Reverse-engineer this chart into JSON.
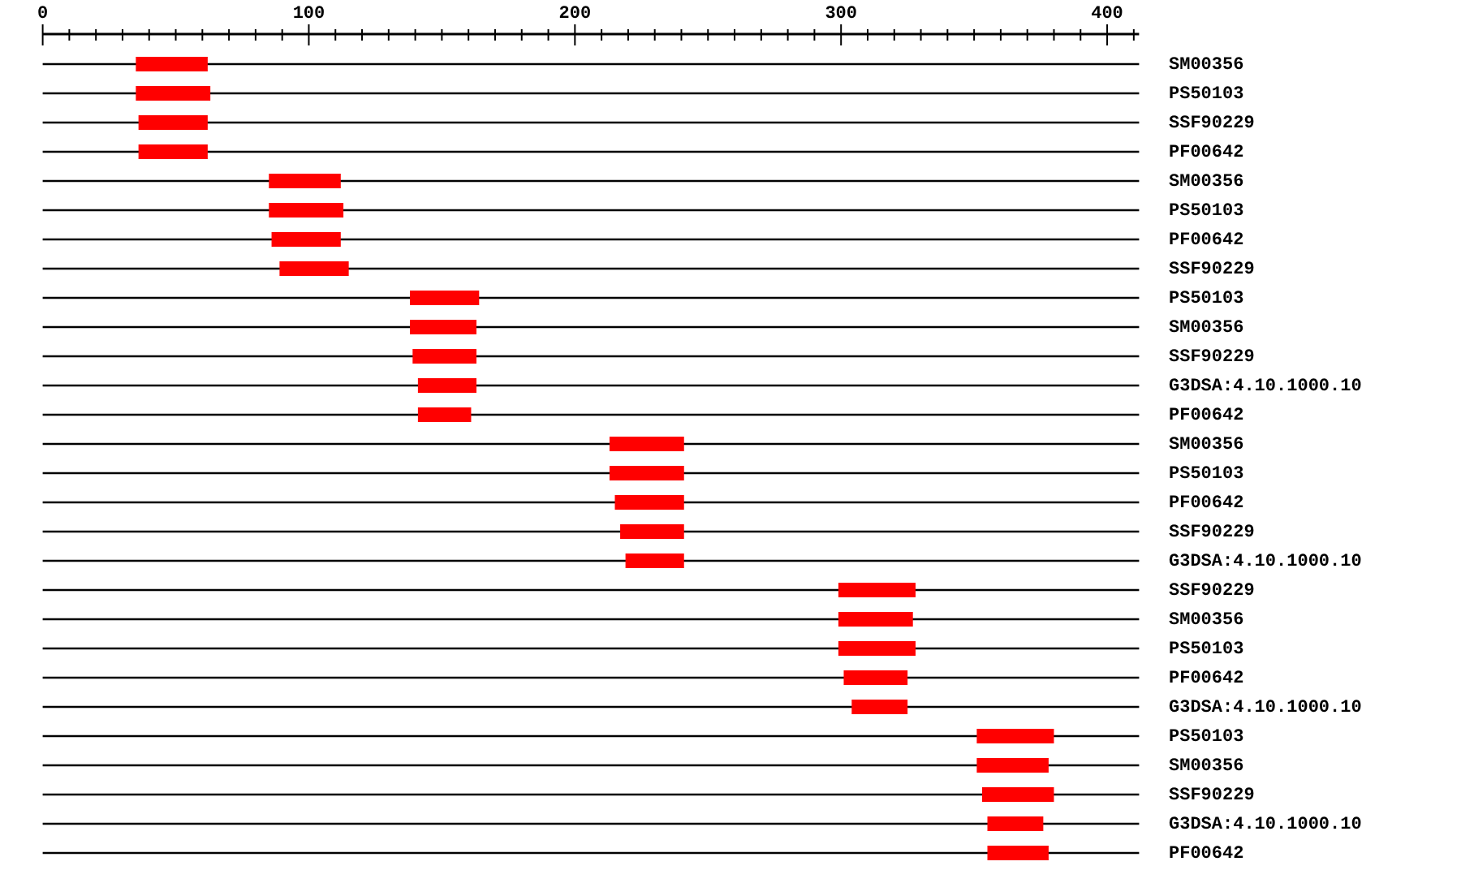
{
  "chart_data": {
    "type": "bar",
    "orientation": "horizontal",
    "grid": "y",
    "categories": [
      "SM00356",
      "PS50103",
      "SSF90229",
      "PF00642",
      "SM00356",
      "PS50103",
      "PF00642",
      "SSF90229",
      "PS50103",
      "SM00356",
      "SSF90229",
      "G3DSA:4.10.1000.10",
      "PF00642",
      "SM00356",
      "PS50103",
      "PF00642",
      "SSF90229",
      "G3DSA:4.10.1000.10",
      "SSF90229",
      "SM00356",
      "PS50103",
      "PF00642",
      "G3DSA:4.10.1000.10",
      "PS50103",
      "SM00356",
      "SSF90229",
      "G3DSA:4.10.1000.10",
      "PF00642"
    ],
    "base": [
      35,
      35,
      36,
      36,
      85,
      85,
      86,
      89,
      138,
      138,
      139,
      141,
      141,
      213,
      213,
      215,
      217,
      219,
      299,
      299,
      299,
      301,
      304,
      351,
      351,
      353,
      355,
      355
    ],
    "values": [
      27,
      28,
      26,
      26,
      27,
      28,
      26,
      26,
      26,
      25,
      24,
      22,
      20,
      28,
      28,
      26,
      24,
      22,
      29,
      28,
      29,
      24,
      21,
      29,
      27,
      27,
      21,
      23
    ],
    "color": "#ff0000",
    "xlim": [
      0,
      412
    ],
    "xticks": [
      0,
      {
        "value": 10,
        "label": null
      },
      {
        "value": 20,
        "label": null
      },
      {
        "value": 30,
        "label": null
      },
      {
        "value": 40,
        "label": null
      },
      {
        "value": 50,
        "label": null
      },
      {
        "value": 60,
        "label": null
      },
      {
        "value": 70,
        "label": null
      },
      {
        "value": 80,
        "label": null
      },
      {
        "value": 90,
        "label": null
      },
      100,
      {
        "value": 110,
        "label": null
      },
      {
        "value": 120,
        "label": null
      },
      {
        "value": 130,
        "label": null
      },
      {
        "value": 140,
        "label": null
      },
      {
        "value": 150,
        "label": null
      },
      {
        "value": 160,
        "label": null
      },
      {
        "value": 170,
        "label": null
      },
      {
        "value": 180,
        "label": null
      },
      {
        "value": 190,
        "label": null
      },
      200,
      {
        "value": 210,
        "label": null
      },
      {
        "value": 220,
        "label": null
      },
      {
        "value": 230,
        "label": null
      },
      {
        "value": 240,
        "label": null
      },
      {
        "value": 250,
        "label": null
      },
      {
        "value": 260,
        "label": null
      },
      {
        "value": 270,
        "label": null
      },
      {
        "value": 280,
        "label": null
      },
      {
        "value": 290,
        "label": null
      },
      300,
      {
        "value": 310,
        "label": null
      },
      {
        "value": 320,
        "label": null
      },
      {
        "value": 330,
        "label": null
      },
      {
        "value": 340,
        "label": null
      },
      {
        "value": 350,
        "label": null
      },
      {
        "value": 360,
        "label": null
      },
      {
        "value": 370,
        "label": null
      },
      {
        "value": 380,
        "label": null
      },
      {
        "value": 390,
        "label": null
      },
      400,
      {
        "value": 410,
        "label": null
      }
    ]
  }
}
